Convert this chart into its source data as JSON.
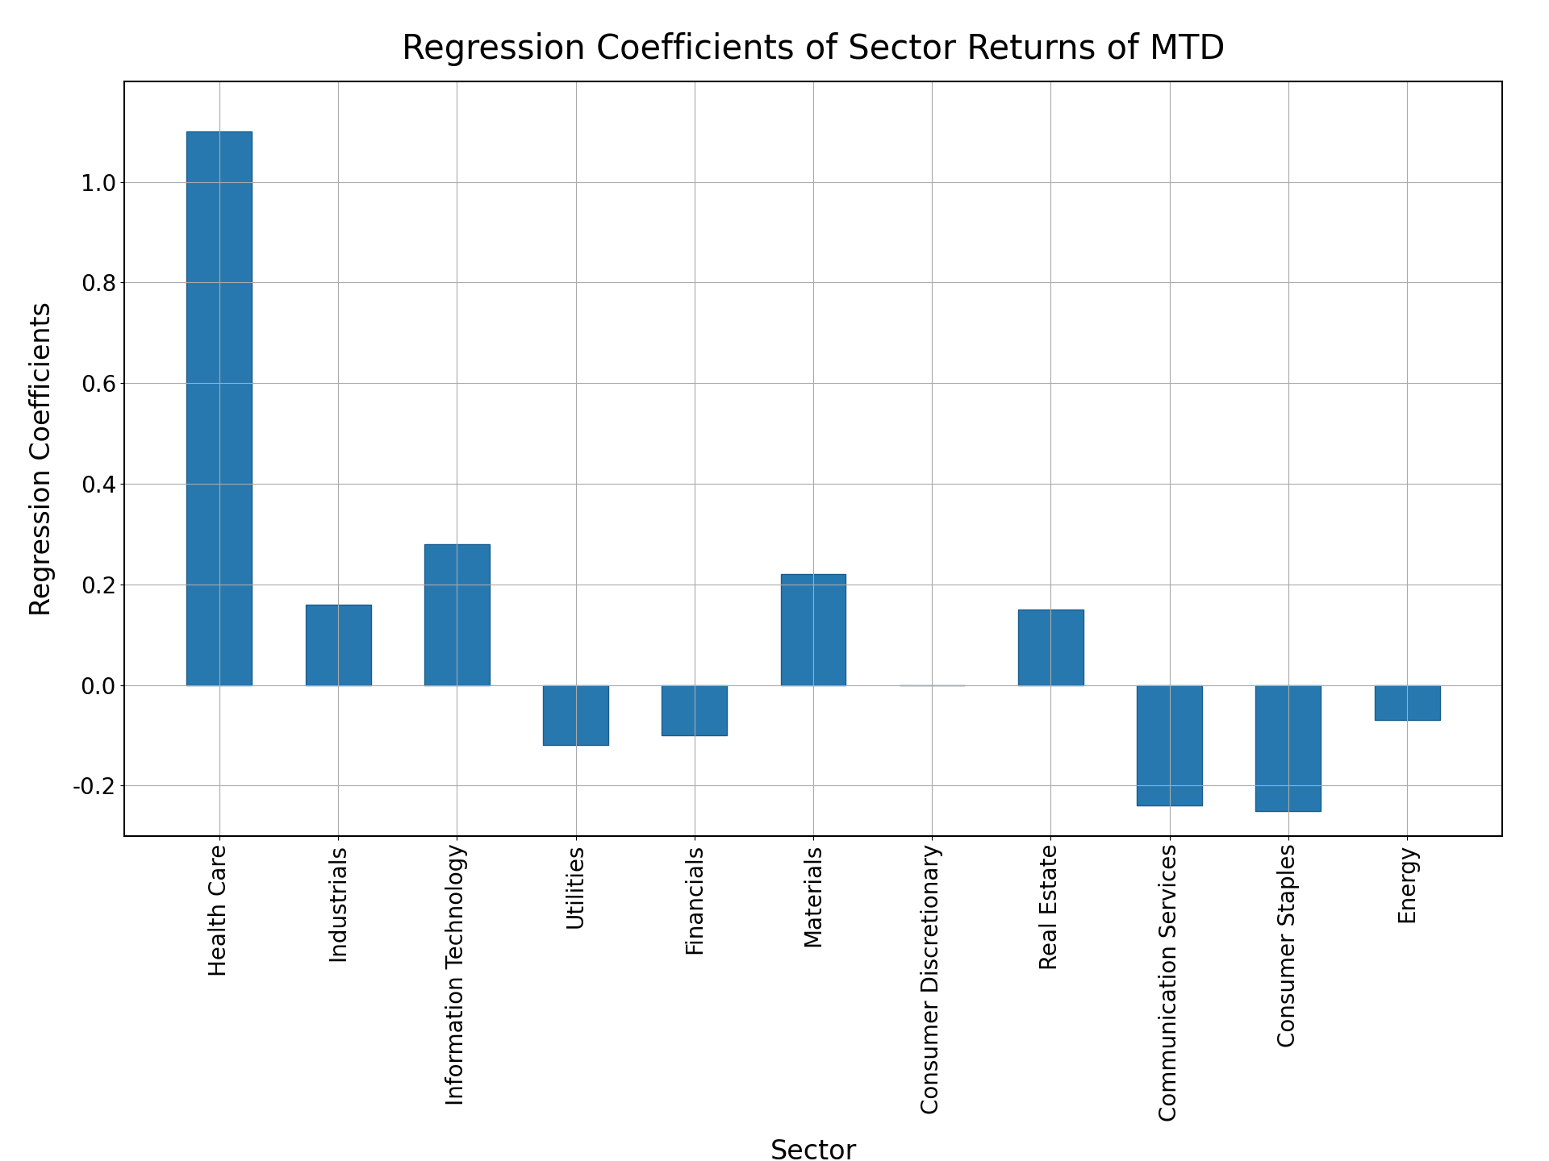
{
  "title": "Regression Coefficients of Sector Returns of MTD",
  "xlabel": "Sector",
  "ylabel": "Regression Coefficients",
  "categories": [
    "Health Care",
    "Industrials",
    "Information Technology",
    "Utilities",
    "Financials",
    "Materials",
    "Consumer Discretionary",
    "Real Estate",
    "Communication Services",
    "Consumer Staples",
    "Energy"
  ],
  "values": [
    1.1,
    0.16,
    0.28,
    -0.12,
    -0.1,
    0.22,
    0.0,
    0.15,
    -0.24,
    -0.25,
    -0.07
  ],
  "bar_color": "#2878b0",
  "bar_edgecolor": "#1a5c8a",
  "ylim": [
    -0.3,
    1.2
  ],
  "yticks": [
    -0.2,
    0.0,
    0.2,
    0.4,
    0.6,
    0.8,
    1.0
  ],
  "title_fontsize": 30,
  "label_fontsize": 24,
  "tick_fontsize": 20,
  "figsize": [
    19.2,
    14.4
  ],
  "dpi": 100,
  "background_color": "#ffffff",
  "grid_color": "#aaaaaa",
  "grid_linewidth": 0.8,
  "bar_width": 0.55
}
